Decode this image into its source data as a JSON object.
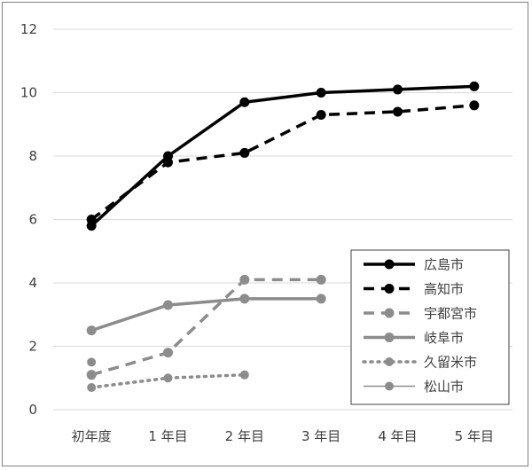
{
  "chart_data": {
    "type": "line",
    "title": "",
    "xlabel": "",
    "ylabel": "",
    "categories": [
      "初年度",
      "1 年目",
      "2 年目",
      "3 年目",
      "4 年目",
      "5 年目"
    ],
    "ylim": [
      0,
      12
    ],
    "yticks": [
      "0",
      "2",
      "4",
      "6",
      "8",
      "10",
      "12"
    ],
    "grid": true,
    "legend_position": "right",
    "series": [
      {
        "name": "広島市",
        "values": [
          5.8,
          8.0,
          9.7,
          10.0,
          10.1,
          10.2
        ],
        "color": "#000000",
        "style": "solid"
      },
      {
        "name": "高知市",
        "values": [
          6.0,
          7.8,
          8.1,
          9.3,
          9.4,
          9.6
        ],
        "color": "#000000",
        "style": "dashed"
      },
      {
        "name": "宇都宮市",
        "values": [
          1.1,
          1.8,
          4.1,
          4.1,
          null,
          null
        ],
        "color": "#8c8c8c",
        "style": "dashed"
      },
      {
        "name": "岐阜市",
        "values": [
          2.5,
          3.3,
          3.5,
          3.5,
          null,
          null
        ],
        "color": "#8c8c8c",
        "style": "solid"
      },
      {
        "name": "久留米市",
        "values": [
          0.7,
          1.0,
          1.1,
          null,
          null,
          null
        ],
        "color": "#8c8c8c",
        "style": "dotted"
      },
      {
        "name": "松山市",
        "values": [
          1.5,
          null,
          null,
          null,
          null,
          null
        ],
        "color": "#8c8c8c",
        "style": "thin"
      }
    ]
  }
}
